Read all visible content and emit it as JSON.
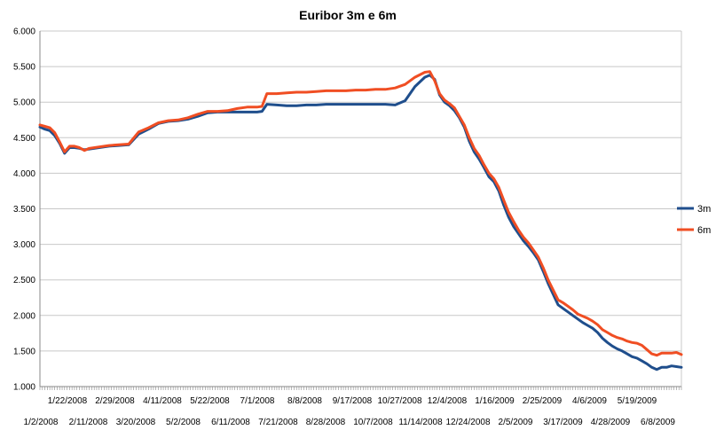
{
  "chart_data": {
    "type": "line",
    "title": "Euribor 3m e 6m",
    "xlabel": "",
    "ylabel": "",
    "ylim": [
      1.0,
      6.0
    ],
    "y_ticks": [
      "1.000",
      "1.500",
      "2.000",
      "2.500",
      "3.000",
      "3.500",
      "4.000",
      "4.500",
      "5.000",
      "5.500",
      "6.000"
    ],
    "x_tick_labels_upper": [
      "1/22/2008",
      "2/29/2008",
      "4/11/2008",
      "5/22/2008",
      "7/1/2008",
      "8/8/2008",
      "9/17/2008",
      "10/27/2008",
      "12/4/2008",
      "1/16/2009",
      "2/25/2009",
      "4/6/2009",
      "5/19/2009"
    ],
    "x_tick_labels_lower": [
      "1/2/2008",
      "2/11/2008",
      "3/20/2008",
      "5/2/2008",
      "6/11/2008",
      "7/21/2008",
      "8/28/2008",
      "10/7/2008",
      "11/14/2008",
      "12/24/2008",
      "2/5/2009",
      "3/17/2009",
      "4/28/2009",
      "6/8/2009"
    ],
    "grid": true,
    "legend_position": "right",
    "colors": {
      "3m": "#1f4e8c",
      "6m": "#f04e23",
      "grid": "#c8c8c8",
      "axis": "#888888"
    },
    "x_index_range": [
      0,
      122
    ],
    "series": [
      {
        "name": "3m",
        "points": [
          [
            0,
            4.65
          ],
          [
            1,
            4.62
          ],
          [
            2,
            4.6
          ],
          [
            3,
            4.53
          ],
          [
            4,
            4.42
          ],
          [
            5,
            4.28
          ],
          [
            6,
            4.36
          ],
          [
            7,
            4.36
          ],
          [
            8,
            4.35
          ],
          [
            9,
            4.33
          ],
          [
            10,
            4.34
          ],
          [
            12,
            4.36
          ],
          [
            14,
            4.38
          ],
          [
            16,
            4.39
          ],
          [
            18,
            4.4
          ],
          [
            20,
            4.55
          ],
          [
            22,
            4.62
          ],
          [
            24,
            4.7
          ],
          [
            26,
            4.73
          ],
          [
            28,
            4.74
          ],
          [
            30,
            4.76
          ],
          [
            32,
            4.8
          ],
          [
            34,
            4.85
          ],
          [
            36,
            4.86
          ],
          [
            38,
            4.86
          ],
          [
            40,
            4.86
          ],
          [
            42,
            4.86
          ],
          [
            44,
            4.86
          ],
          [
            45,
            4.87
          ],
          [
            46,
            4.97
          ],
          [
            48,
            4.96
          ],
          [
            50,
            4.95
          ],
          [
            52,
            4.95
          ],
          [
            54,
            4.96
          ],
          [
            56,
            4.96
          ],
          [
            58,
            4.97
          ],
          [
            60,
            4.97
          ],
          [
            62,
            4.97
          ],
          [
            64,
            4.97
          ],
          [
            66,
            4.97
          ],
          [
            68,
            4.97
          ],
          [
            70,
            4.97
          ],
          [
            72,
            4.96
          ],
          [
            74,
            5.02
          ],
          [
            76,
            5.22
          ],
          [
            78,
            5.35
          ],
          [
            79,
            5.38
          ],
          [
            80,
            5.32
          ],
          [
            81,
            5.1
          ],
          [
            82,
            5.0
          ],
          [
            83,
            4.95
          ],
          [
            84,
            4.88
          ],
          [
            85,
            4.78
          ],
          [
            86,
            4.65
          ],
          [
            87,
            4.45
          ],
          [
            88,
            4.3
          ],
          [
            89,
            4.2
          ],
          [
            90,
            4.08
          ],
          [
            91,
            3.95
          ],
          [
            92,
            3.88
          ],
          [
            93,
            3.75
          ],
          [
            94,
            3.55
          ],
          [
            95,
            3.38
          ],
          [
            96,
            3.25
          ],
          [
            97,
            3.15
          ],
          [
            98,
            3.05
          ],
          [
            99,
            2.97
          ],
          [
            100,
            2.88
          ],
          [
            101,
            2.78
          ],
          [
            102,
            2.62
          ],
          [
            103,
            2.45
          ],
          [
            104,
            2.3
          ],
          [
            105,
            2.15
          ],
          [
            106,
            2.1
          ],
          [
            107,
            2.05
          ],
          [
            108,
            2.0
          ],
          [
            109,
            1.95
          ],
          [
            110,
            1.9
          ],
          [
            111,
            1.86
          ],
          [
            112,
            1.82
          ],
          [
            113,
            1.76
          ],
          [
            114,
            1.68
          ],
          [
            115,
            1.62
          ],
          [
            116,
            1.57
          ],
          [
            117,
            1.53
          ],
          [
            118,
            1.5
          ],
          [
            119,
            1.46
          ],
          [
            120,
            1.42
          ],
          [
            121,
            1.4
          ],
          [
            122,
            1.36
          ],
          [
            123,
            1.32
          ],
          [
            124,
            1.27
          ],
          [
            125,
            1.24
          ],
          [
            126,
            1.27
          ],
          [
            127,
            1.27
          ],
          [
            128,
            1.29
          ],
          [
            129,
            1.28
          ],
          [
            130,
            1.27
          ]
        ]
      },
      {
        "name": "6m",
        "points": [
          [
            0,
            4.68
          ],
          [
            1,
            4.66
          ],
          [
            2,
            4.64
          ],
          [
            3,
            4.57
          ],
          [
            4,
            4.44
          ],
          [
            5,
            4.3
          ],
          [
            6,
            4.38
          ],
          [
            7,
            4.38
          ],
          [
            8,
            4.36
          ],
          [
            9,
            4.32
          ],
          [
            10,
            4.35
          ],
          [
            12,
            4.37
          ],
          [
            14,
            4.39
          ],
          [
            16,
            4.4
          ],
          [
            18,
            4.41
          ],
          [
            20,
            4.58
          ],
          [
            22,
            4.64
          ],
          [
            24,
            4.71
          ],
          [
            26,
            4.74
          ],
          [
            28,
            4.75
          ],
          [
            30,
            4.78
          ],
          [
            32,
            4.83
          ],
          [
            34,
            4.87
          ],
          [
            36,
            4.87
          ],
          [
            38,
            4.88
          ],
          [
            40,
            4.91
          ],
          [
            42,
            4.93
          ],
          [
            44,
            4.93
          ],
          [
            45,
            4.94
          ],
          [
            46,
            5.12
          ],
          [
            48,
            5.12
          ],
          [
            50,
            5.13
          ],
          [
            52,
            5.14
          ],
          [
            54,
            5.14
          ],
          [
            56,
            5.15
          ],
          [
            58,
            5.16
          ],
          [
            60,
            5.16
          ],
          [
            62,
            5.16
          ],
          [
            64,
            5.17
          ],
          [
            66,
            5.17
          ],
          [
            68,
            5.18
          ],
          [
            70,
            5.18
          ],
          [
            72,
            5.2
          ],
          [
            74,
            5.25
          ],
          [
            76,
            5.35
          ],
          [
            78,
            5.42
          ],
          [
            79,
            5.43
          ],
          [
            80,
            5.3
          ],
          [
            81,
            5.12
          ],
          [
            82,
            5.03
          ],
          [
            83,
            4.98
          ],
          [
            84,
            4.92
          ],
          [
            85,
            4.8
          ],
          [
            86,
            4.68
          ],
          [
            87,
            4.5
          ],
          [
            88,
            4.35
          ],
          [
            89,
            4.25
          ],
          [
            90,
            4.12
          ],
          [
            91,
            4.0
          ],
          [
            92,
            3.92
          ],
          [
            93,
            3.8
          ],
          [
            94,
            3.62
          ],
          [
            95,
            3.45
          ],
          [
            96,
            3.32
          ],
          [
            97,
            3.2
          ],
          [
            98,
            3.1
          ],
          [
            99,
            3.02
          ],
          [
            100,
            2.92
          ],
          [
            101,
            2.82
          ],
          [
            102,
            2.67
          ],
          [
            103,
            2.5
          ],
          [
            104,
            2.36
          ],
          [
            105,
            2.22
          ],
          [
            106,
            2.18
          ],
          [
            107,
            2.13
          ],
          [
            108,
            2.08
          ],
          [
            109,
            2.02
          ],
          [
            110,
            1.99
          ],
          [
            111,
            1.96
          ],
          [
            112,
            1.92
          ],
          [
            113,
            1.87
          ],
          [
            114,
            1.8
          ],
          [
            115,
            1.76
          ],
          [
            116,
            1.72
          ],
          [
            117,
            1.69
          ],
          [
            118,
            1.67
          ],
          [
            119,
            1.64
          ],
          [
            120,
            1.62
          ],
          [
            121,
            1.61
          ],
          [
            122,
            1.58
          ],
          [
            123,
            1.52
          ],
          [
            124,
            1.46
          ],
          [
            125,
            1.44
          ],
          [
            126,
            1.47
          ],
          [
            127,
            1.47
          ],
          [
            128,
            1.47
          ],
          [
            129,
            1.48
          ],
          [
            130,
            1.45
          ]
        ]
      }
    ]
  }
}
